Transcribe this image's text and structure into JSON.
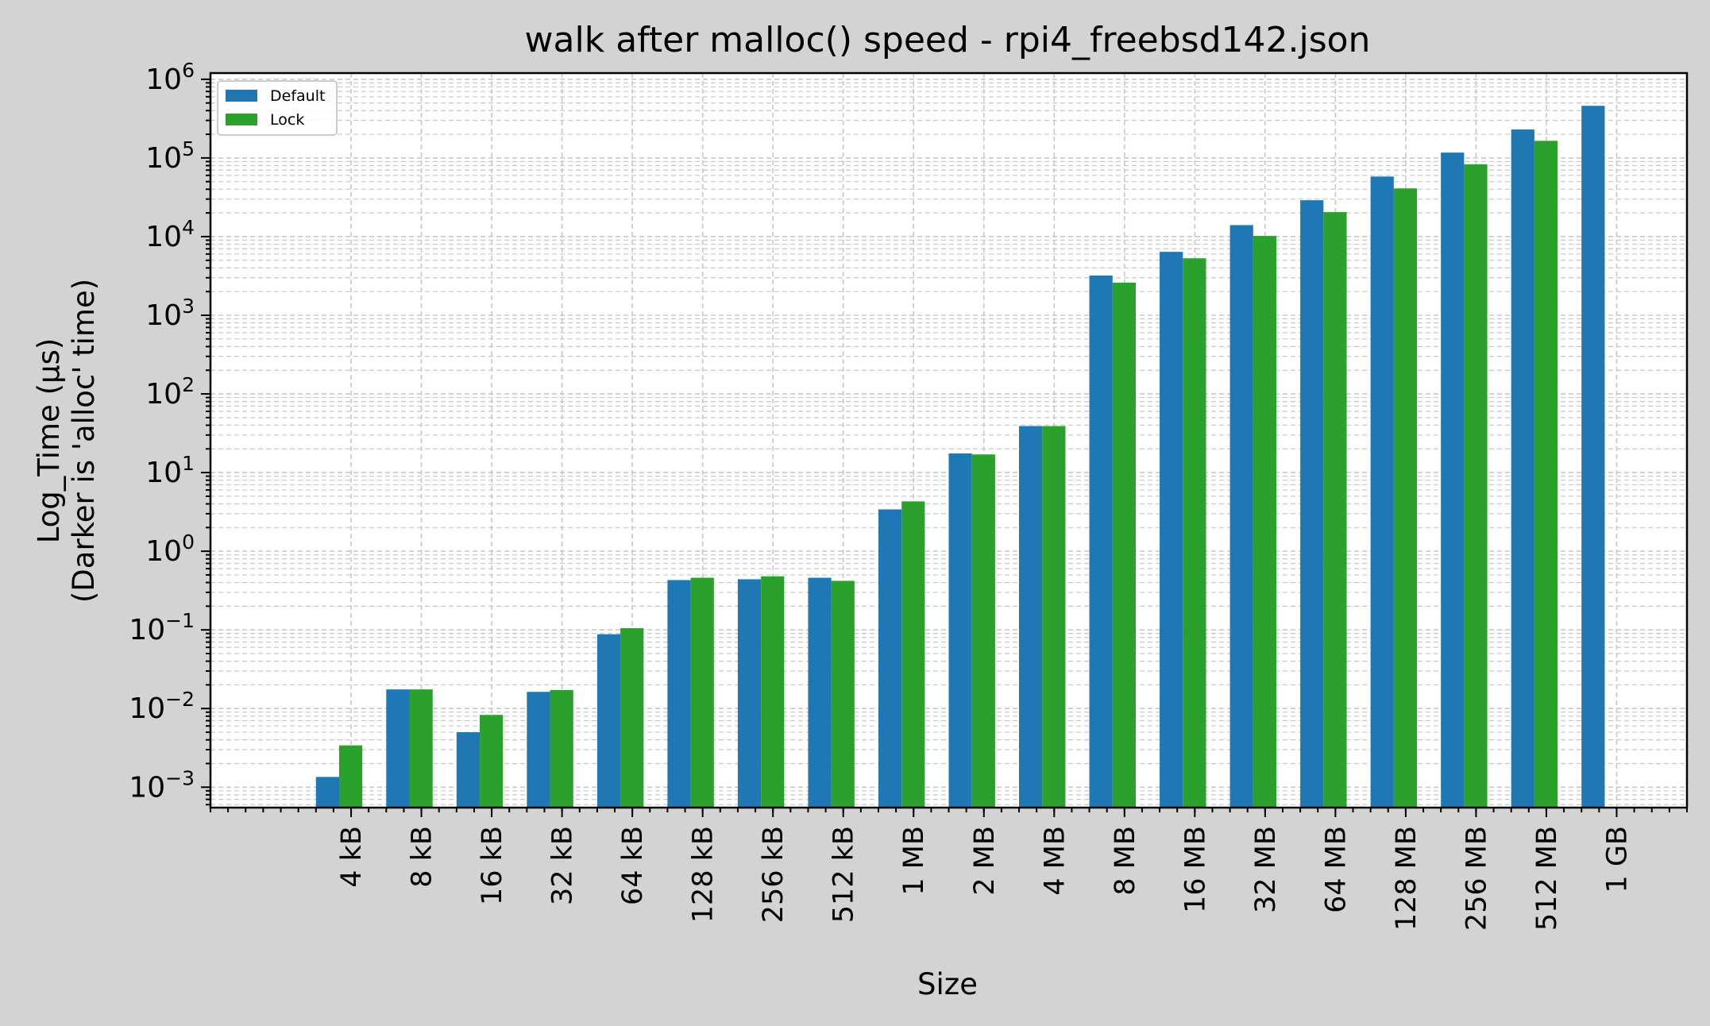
{
  "chart_data": {
    "type": "bar",
    "title": "walk after malloc() speed - rpi4_freebsd142.json",
    "xlabel": "Size",
    "ylabel": [
      "Log_Time (µs)",
      "(Darker is 'alloc' time)"
    ],
    "yscale": "log",
    "ylim": [
      0.00055,
      1200000
    ],
    "yticks": [
      {
        "base": "10",
        "exp": "−3",
        "value": 0.001
      },
      {
        "base": "10",
        "exp": "−2",
        "value": 0.01
      },
      {
        "base": "10",
        "exp": "−1",
        "value": 0.1
      },
      {
        "base": "10",
        "exp": "0",
        "value": 1
      },
      {
        "base": "10",
        "exp": "1",
        "value": 10
      },
      {
        "base": "10",
        "exp": "2",
        "value": 100
      },
      {
        "base": "10",
        "exp": "3",
        "value": 1000
      },
      {
        "base": "10",
        "exp": "4",
        "value": 10000
      },
      {
        "base": "10",
        "exp": "5",
        "value": 100000
      },
      {
        "base": "10",
        "exp": "6",
        "value": 1000000
      }
    ],
    "grid": true,
    "legend_position": "top-left",
    "categories": [
      "4 kB",
      "8 kB",
      "16 kB",
      "32 kB",
      "64 kB",
      "128 kB",
      "256 kB",
      "512 kB",
      "1 MB",
      "2 MB",
      "4 MB",
      "8 MB",
      "16 MB",
      "32 MB",
      "64 MB",
      "128 MB",
      "256 MB",
      "512 MB",
      "1 GB"
    ],
    "series": [
      {
        "name": "Default",
        "color": "#1f77b4",
        "values": [
          0.00135,
          0.0175,
          0.005,
          0.0163,
          0.088,
          0.43,
          0.44,
          0.46,
          3.4,
          17.5,
          39,
          3200,
          6400,
          14000,
          29000,
          58000,
          117000,
          230000,
          460000
        ]
      },
      {
        "name": "Lock",
        "color": "#2ca02c",
        "values": [
          0.0034,
          0.0175,
          0.0083,
          0.0172,
          0.105,
          0.46,
          0.48,
          0.42,
          4.3,
          17,
          39,
          2600,
          5300,
          10200,
          20500,
          41000,
          83000,
          165000,
          null
        ]
      }
    ]
  }
}
